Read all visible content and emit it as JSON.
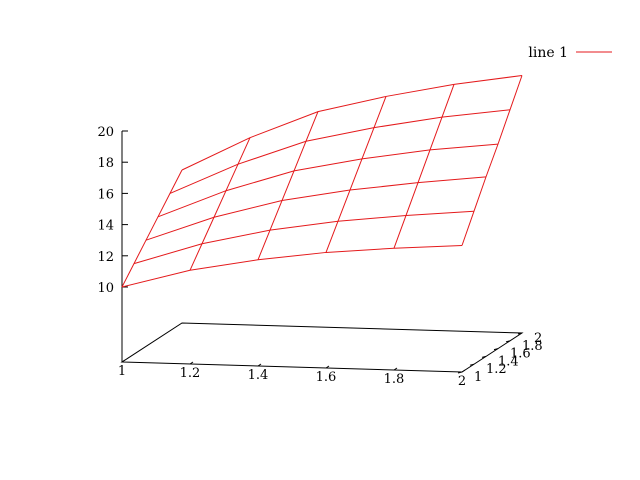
{
  "chart_data": {
    "type": "surface",
    "title": "",
    "xlabel": "",
    "ylabel": "",
    "zlabel": "",
    "xlim": [
      1,
      2
    ],
    "ylim": [
      1,
      2
    ],
    "zlim": [
      10,
      20
    ],
    "x_ticks": [
      1,
      1.2,
      1.4,
      1.6,
      1.8,
      2
    ],
    "x_tick_labels": [
      "1",
      "1.2",
      "1.4",
      "1.6",
      "1.8",
      "2"
    ],
    "y_ticks": [
      1,
      1.2,
      1.4,
      1.6,
      1.8,
      2
    ],
    "y_tick_labels": [
      "1",
      "1.2",
      "1.4",
      "1.6",
      "1.8",
      "2"
    ],
    "z_ticks": [
      10,
      12,
      14,
      16,
      18,
      20
    ],
    "z_tick_labels": [
      "10",
      "12",
      "14",
      "16",
      "18",
      "20"
    ],
    "legend": {
      "position": "top-right"
    },
    "grid": false,
    "x": [
      1,
      1.2,
      1.4,
      1.6,
      1.8,
      2
    ],
    "y": [
      1,
      1.2,
      1.4,
      1.6,
      1.8,
      2
    ],
    "series": [
      {
        "name": "line 1",
        "color": "#e41a1c",
        "z_rule": "z = 10 * x * y / 2 + 5 (approx.)",
        "z": [
          [
            10.0,
            11.0,
            12.0,
            13.0,
            14.0,
            15.0
          ],
          [
            11.2,
            12.4,
            13.6,
            14.8,
            16.0,
            17.2
          ],
          [
            12.0,
            13.4,
            14.8,
            16.2,
            17.6,
            19.0
          ],
          [
            12.6,
            14.1,
            15.6,
            17.1,
            18.6,
            20.1
          ],
          [
            13.0,
            14.6,
            16.2,
            17.8,
            19.4,
            21.0
          ],
          [
            13.3,
            15.0,
            16.7,
            18.3,
            20.0,
            21.7
          ]
        ]
      }
    ]
  }
}
